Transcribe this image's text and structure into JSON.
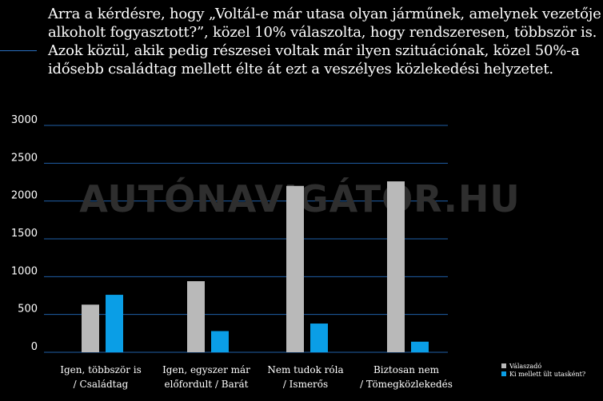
{
  "heading": {
    "lines": [
      "Arra a kérdésre, hogy „Voltál-e már utasa olyan járműnek, amelynek vezetője",
      "alkoholt fogyasztott?”, közel 10% válaszolta, hogy rendszeresen, többször is.",
      "Azok közül, akik pedig részesei voltak már ilyen szituációnak, közel 50%-a",
      "idősebb családtag mellett élte át ezt a veszélyes közlekedési helyzetet."
    ]
  },
  "watermark": "AUTÓNAVIGÁTOR.HU",
  "colors": {
    "background": "#000000",
    "grid": "#1f5fa8",
    "series1": "#b9b9b9",
    "series2": "#0a9ee6",
    "text": "#ffffff"
  },
  "chart_data": {
    "type": "bar",
    "categories": [
      [
        "Igen, többször is",
        "/ Családtag"
      ],
      [
        "Igen, egyszer már",
        "előfordult / Barát"
      ],
      [
        "Nem tudok róla",
        "/ Ismerős"
      ],
      [
        "Biztosan nem",
        "/ Tömegközlekedés"
      ]
    ],
    "series": [
      {
        "name": "Válaszadó",
        "values": [
          630,
          940,
          2200,
          2260
        ],
        "color": "#b9b9b9"
      },
      {
        "name": "Ki mellett ült utasként?",
        "values": [
          760,
          280,
          380,
          140
        ],
        "color": "#0a9ee6"
      }
    ],
    "yticks": [
      0,
      500,
      1000,
      1500,
      2000,
      2500,
      3000
    ],
    "ylim": [
      0,
      3000
    ],
    "grid": true,
    "legend": "bottom-right",
    "xlabel": "",
    "ylabel": ""
  }
}
